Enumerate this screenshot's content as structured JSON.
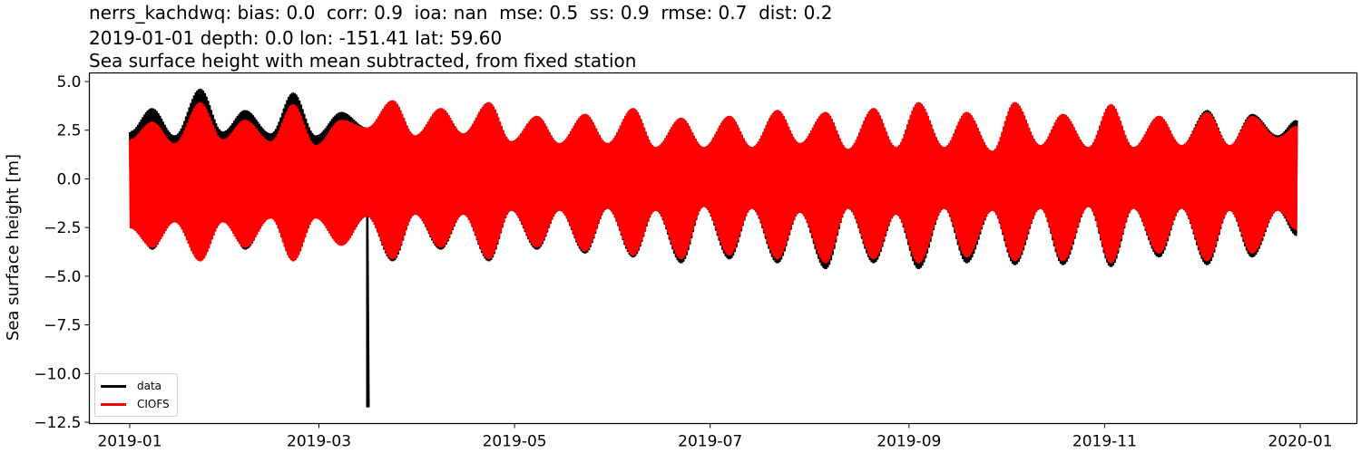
{
  "title": {
    "line1": "nerrs_kachdwq: bias: 0.0  corr: 0.9  ioa: nan  mse: 0.5  ss: 0.9  rmse: 0.7  dist: 0.2",
    "line2": "2019-01-01 depth: 0.0 lon: -151.41 lat: 59.60",
    "line3": "Sea surface height with mean subtracted, from fixed station"
  },
  "chart_data": {
    "type": "line",
    "title": "nerrs_kachdwq: bias: 0.0  corr: 0.9  ioa: nan  mse: 0.5  ss: 0.9  rmse: 0.7  dist: 0.2 / 2019-01-01 depth: 0.0 lon: -151.41 lat: 59.60 / Sea surface height with mean subtracted, from fixed station",
    "xlabel": "",
    "ylabel": "Sea surface height [m]",
    "ylim": [
      -12.5,
      5.3
    ],
    "xlim": [
      "2018-12-10",
      "2020-01-12"
    ],
    "grid": false,
    "legend_position": "lower left",
    "xticks": [
      "2019-01",
      "2019-03",
      "2019-05",
      "2019-07",
      "2019-09",
      "2019-11",
      "2020-01"
    ],
    "yticks": [
      "5.0",
      "2.5",
      "0.0",
      "−2.5",
      "−5.0",
      "−7.5",
      "−10.0",
      "−12.5"
    ],
    "ytick_values": [
      5.0,
      2.5,
      0.0,
      -2.5,
      -5.0,
      -7.5,
      -10.0,
      -12.5
    ],
    "series": [
      {
        "name": "data",
        "color": "#000000",
        "description": "Observed tidal sea surface height, spring-neap envelope; single outlier spike to -11.7 m around 2019-03-16",
        "envelope_days": [
          0,
          7,
          14,
          22,
          29,
          36,
          44,
          51,
          58,
          66,
          74,
          82,
          89,
          97,
          104,
          112,
          119,
          127,
          134,
          142,
          149,
          157,
          164,
          172,
          179,
          187,
          194,
          202,
          209,
          217,
          224,
          232,
          239,
          246,
          254,
          261,
          269,
          276,
          284,
          291,
          299,
          306,
          313,
          321,
          328,
          336,
          343,
          350,
          358,
          364
        ],
        "envelope_max": [
          2.4,
          3.6,
          2.2,
          4.6,
          2.4,
          3.5,
          2.3,
          4.4,
          2.2,
          3.4,
          2.6,
          4.0,
          2.2,
          3.6,
          2.3,
          3.9,
          1.9,
          3.2,
          1.8,
          3.3,
          1.8,
          3.6,
          1.6,
          3.1,
          1.6,
          3.2,
          1.6,
          3.5,
          1.8,
          3.4,
          1.5,
          3.6,
          1.6,
          3.9,
          1.6,
          3.4,
          1.4,
          3.9,
          1.7,
          3.3,
          1.6,
          3.8,
          1.6,
          3.2,
          1.7,
          3.5,
          1.7,
          3.3,
          2.2,
          3.0
        ],
        "envelope_min": [
          -1.6,
          -3.6,
          -1.8,
          -4.2,
          -1.6,
          -3.6,
          -1.8,
          -4.2,
          -1.7,
          -3.4,
          -1.9,
          -4.2,
          -1.8,
          -3.6,
          -1.8,
          -4.2,
          -1.6,
          -3.6,
          -1.6,
          -3.8,
          -1.5,
          -4.0,
          -1.6,
          -4.3,
          -1.4,
          -4.1,
          -1.5,
          -4.3,
          -1.7,
          -4.6,
          -1.5,
          -4.3,
          -1.8,
          -4.6,
          -1.5,
          -4.3,
          -1.6,
          -4.4,
          -1.5,
          -4.4,
          -1.4,
          -4.5,
          -1.5,
          -4.0,
          -1.5,
          -4.4,
          -1.6,
          -4.0,
          -1.6,
          -2.9
        ],
        "spike": {
          "day": 74,
          "value": -11.7
        }
      },
      {
        "name": "CIOFS",
        "color": "#ff0000",
        "description": "Model (CIOFS) sea surface height, closely tracking data with slightly lower amplitude in Jan-Mar",
        "envelope_days": [
          0,
          7,
          14,
          22,
          29,
          36,
          44,
          51,
          58,
          66,
          74,
          82,
          89,
          97,
          104,
          112,
          119,
          127,
          134,
          142,
          149,
          157,
          164,
          172,
          179,
          187,
          194,
          202,
          209,
          217,
          224,
          232,
          239,
          246,
          254,
          261,
          269,
          276,
          284,
          291,
          299,
          306,
          313,
          321,
          328,
          336,
          343,
          350,
          358,
          364
        ],
        "envelope_max": [
          2.0,
          2.9,
          1.8,
          3.9,
          2.0,
          3.0,
          1.9,
          3.8,
          1.7,
          3.0,
          2.6,
          4.0,
          2.2,
          3.6,
          2.3,
          3.9,
          1.9,
          3.2,
          1.8,
          3.3,
          1.8,
          3.6,
          1.6,
          3.1,
          1.6,
          3.2,
          1.6,
          3.5,
          1.8,
          3.4,
          1.5,
          3.6,
          1.6,
          3.9,
          1.6,
          3.4,
          1.4,
          3.9,
          1.7,
          3.3,
          1.6,
          3.8,
          1.6,
          3.2,
          1.7,
          3.4,
          1.7,
          3.2,
          2.1,
          2.7
        ],
        "envelope_min": [
          -2.5,
          -3.5,
          -2.2,
          -4.2,
          -2.2,
          -3.5,
          -2.0,
          -4.2,
          -2.0,
          -3.4,
          -1.9,
          -4.1,
          -1.8,
          -3.5,
          -1.8,
          -4.1,
          -1.6,
          -3.5,
          -1.6,
          -3.7,
          -1.5,
          -3.9,
          -1.6,
          -4.1,
          -1.4,
          -3.9,
          -1.5,
          -4.1,
          -1.7,
          -4.3,
          -1.5,
          -4.1,
          -1.8,
          -4.3,
          -1.5,
          -4.0,
          -1.6,
          -4.2,
          -1.5,
          -4.2,
          -1.4,
          -4.3,
          -1.5,
          -3.8,
          -1.5,
          -4.2,
          -1.6,
          -3.8,
          -1.6,
          -2.6
        ]
      }
    ]
  },
  "legend": {
    "items": [
      {
        "label": "data",
        "color": "#000000"
      },
      {
        "label": "CIOFS",
        "color": "#ff0000"
      }
    ]
  }
}
